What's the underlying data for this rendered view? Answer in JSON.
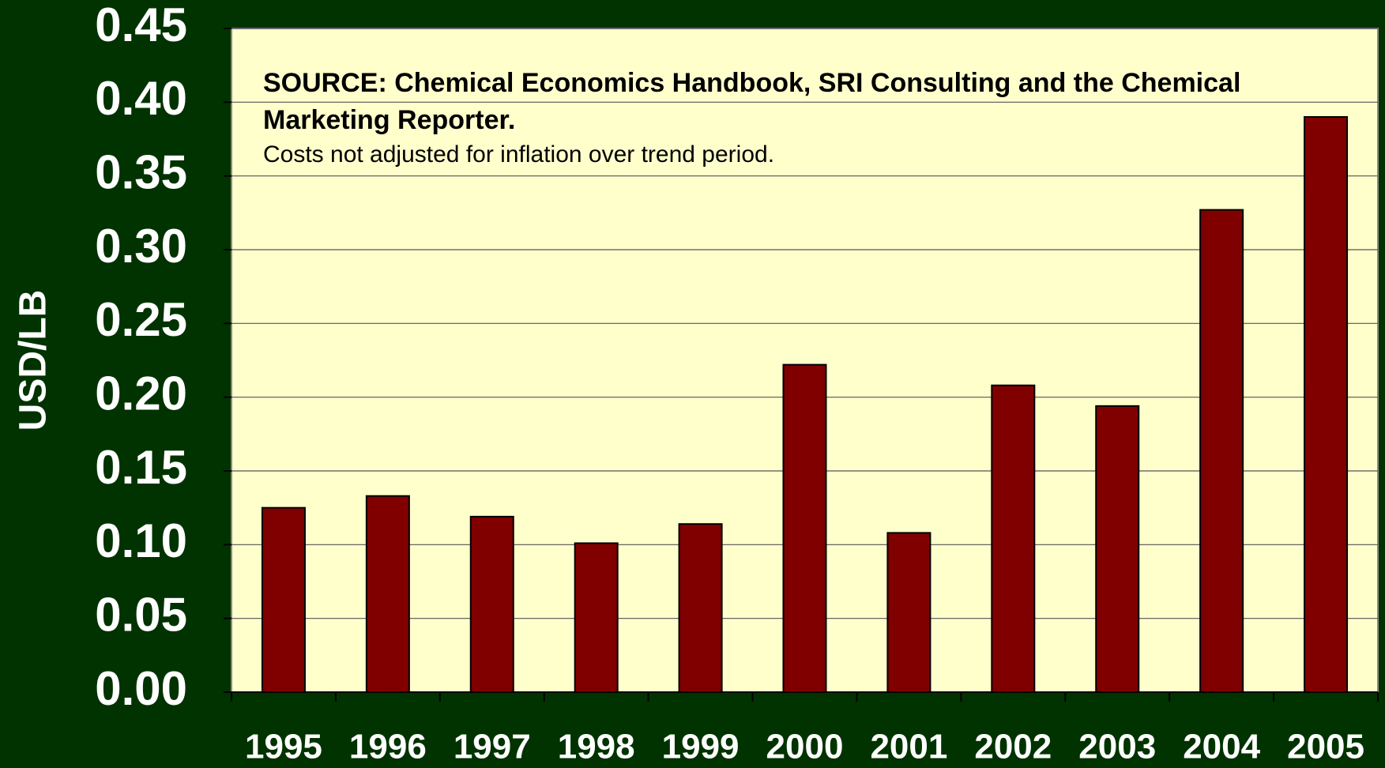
{
  "chart_data": {
    "type": "bar",
    "y_label": "USD/LB",
    "annotations": [
      "SOURCE: Chemical Economics Handbook, SRI Consulting and the Chemical Marketing Reporter.",
      "Costs not adjusted for inflation over trend period."
    ],
    "categories": [
      "1995",
      "1996",
      "1997",
      "1998",
      "1999",
      "2000",
      "2001",
      "2002",
      "2003",
      "2004",
      "2005"
    ],
    "values": [
      0.125,
      0.133,
      0.119,
      0.101,
      0.114,
      0.222,
      0.108,
      0.208,
      0.194,
      0.327,
      0.39
    ],
    "color": "#800000",
    "ylim": [
      0,
      0.45
    ],
    "yticks": [
      {
        "value": 0,
        "label": "0.00"
      },
      {
        "value": 0.05,
        "label": "0.05"
      },
      {
        "value": 0.1,
        "label": "0.10"
      },
      {
        "value": 0.15,
        "label": "0.15"
      },
      {
        "value": 0.2,
        "label": "0.20"
      },
      {
        "value": 0.25,
        "label": "0.25"
      },
      {
        "value": 0.3,
        "label": "0.30"
      },
      {
        "value": 0.35,
        "label": "0.35"
      },
      {
        "value": 0.4,
        "label": "0.40"
      },
      {
        "value": 0.45,
        "label": "0.45"
      }
    ],
    "grid": true
  }
}
